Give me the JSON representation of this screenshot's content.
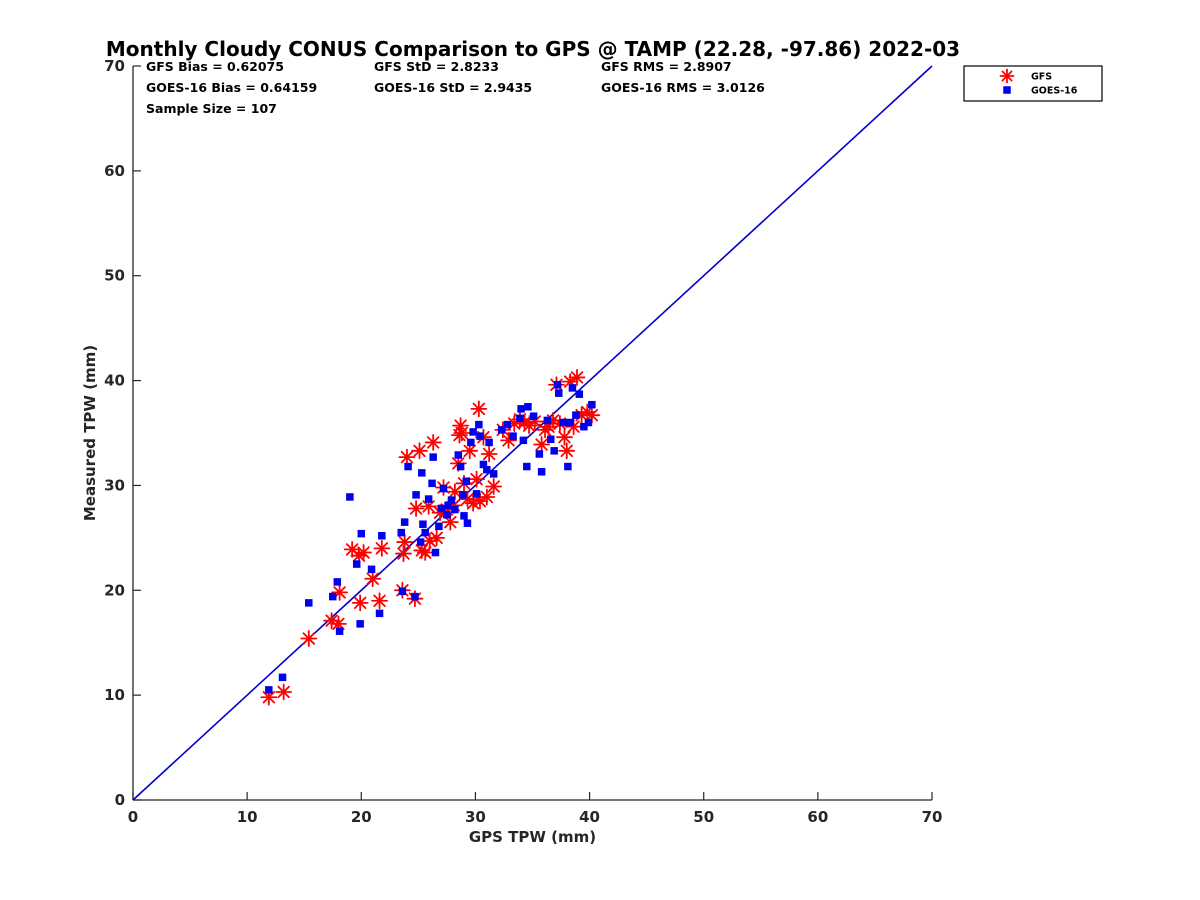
{
  "chart_data": {
    "type": "scatter",
    "title": "Monthly Cloudy CONUS Comparison to GPS @ TAMP (22.28, -97.86) 2022-03",
    "xlabel": "GPS TPW (mm)",
    "ylabel": "Measured TPW (mm)",
    "xlim": [
      0,
      70
    ],
    "ylim": [
      0,
      70
    ],
    "xticks": [
      "0",
      "10",
      "20",
      "30",
      "40",
      "50",
      "60",
      "70"
    ],
    "yticks": [
      "0",
      "10",
      "20",
      "30",
      "40",
      "50",
      "60",
      "70"
    ],
    "grid": false,
    "legend_position": "outside-top-right",
    "stats": {
      "gfs_bias": "GFS Bias = 0.62075",
      "gfs_std": "GFS StD = 2.8233",
      "gfs_rms": "GFS RMS = 2.8907",
      "goes_bias": "GOES-16 Bias = 0.64159",
      "goes_std": "GOES-16 StD = 2.9435",
      "goes_rms": "GOES-16 RMS = 3.0126",
      "sample_size": "Sample Size = 107"
    },
    "reference_line": {
      "x": [
        0,
        70
      ],
      "y": [
        0,
        70
      ],
      "color": "#0000cc"
    },
    "series": [
      {
        "name": "GFS",
        "marker": "asterisk",
        "color": "#ff0000",
        "points": [
          [
            11.9,
            9.8
          ],
          [
            13.2,
            10.3
          ],
          [
            15.4,
            15.4
          ],
          [
            17.4,
            17.1
          ],
          [
            18.0,
            16.8
          ],
          [
            18.1,
            19.8
          ],
          [
            19.2,
            23.9
          ],
          [
            19.8,
            23.3
          ],
          [
            20.2,
            23.6
          ],
          [
            19.9,
            18.8
          ],
          [
            21.0,
            21.1
          ],
          [
            21.6,
            19.0
          ],
          [
            21.8,
            24.0
          ],
          [
            23.6,
            20.0
          ],
          [
            23.7,
            23.5
          ],
          [
            23.8,
            24.6
          ],
          [
            24.0,
            32.7
          ],
          [
            24.7,
            19.2
          ],
          [
            24.8,
            27.8
          ],
          [
            25.1,
            33.3
          ],
          [
            25.3,
            23.8
          ],
          [
            25.6,
            23.6
          ],
          [
            25.9,
            28.0
          ],
          [
            26.0,
            24.7
          ],
          [
            26.3,
            34.1
          ],
          [
            26.6,
            25.0
          ],
          [
            26.9,
            27.4
          ],
          [
            27.2,
            29.8
          ],
          [
            27.5,
            27.7
          ],
          [
            27.8,
            26.5
          ],
          [
            28.1,
            28.1
          ],
          [
            28.2,
            29.4
          ],
          [
            28.5,
            32.1
          ],
          [
            28.6,
            34.8
          ],
          [
            28.7,
            35.7
          ],
          [
            28.8,
            35.0
          ],
          [
            29.0,
            30.2
          ],
          [
            29.3,
            28.7
          ],
          [
            29.5,
            33.3
          ],
          [
            29.8,
            28.3
          ],
          [
            30.1,
            30.6
          ],
          [
            30.3,
            37.3
          ],
          [
            30.4,
            28.5
          ],
          [
            30.7,
            34.6
          ],
          [
            31.0,
            28.9
          ],
          [
            31.2,
            33.0
          ],
          [
            31.6,
            29.9
          ],
          [
            32.4,
            35.3
          ],
          [
            32.9,
            34.3
          ],
          [
            33.4,
            35.9
          ],
          [
            33.9,
            36.3
          ],
          [
            34.3,
            36.0
          ],
          [
            34.7,
            35.7
          ],
          [
            35.2,
            36.1
          ],
          [
            35.8,
            33.9
          ],
          [
            36.1,
            35.3
          ],
          [
            36.4,
            35.6
          ],
          [
            36.8,
            36.2
          ],
          [
            37.1,
            39.6
          ],
          [
            37.4,
            35.9
          ],
          [
            37.8,
            34.6
          ],
          [
            38.0,
            33.3
          ],
          [
            38.3,
            39.9
          ],
          [
            38.6,
            35.6
          ],
          [
            38.9,
            40.3
          ],
          [
            39.3,
            36.7
          ],
          [
            39.8,
            37.0
          ],
          [
            40.2,
            36.7
          ]
        ]
      },
      {
        "name": "GOES-16",
        "marker": "square",
        "color": "#0000ee",
        "points": [
          [
            11.9,
            10.5
          ],
          [
            13.1,
            11.7
          ],
          [
            15.4,
            18.8
          ],
          [
            17.5,
            19.4
          ],
          [
            17.9,
            20.8
          ],
          [
            18.1,
            16.1
          ],
          [
            19.0,
            28.9
          ],
          [
            19.6,
            22.5
          ],
          [
            19.9,
            16.8
          ],
          [
            20.0,
            25.4
          ],
          [
            20.9,
            22.0
          ],
          [
            21.6,
            17.8
          ],
          [
            21.8,
            25.2
          ],
          [
            23.5,
            25.5
          ],
          [
            23.6,
            19.9
          ],
          [
            23.8,
            26.5
          ],
          [
            24.1,
            31.8
          ],
          [
            24.7,
            19.4
          ],
          [
            24.8,
            29.1
          ],
          [
            25.2,
            24.6
          ],
          [
            25.3,
            31.2
          ],
          [
            25.4,
            26.3
          ],
          [
            25.6,
            25.5
          ],
          [
            25.9,
            28.7
          ],
          [
            26.2,
            30.2
          ],
          [
            26.3,
            32.7
          ],
          [
            26.5,
            23.6
          ],
          [
            26.8,
            26.1
          ],
          [
            27.0,
            27.8
          ],
          [
            27.2,
            29.7
          ],
          [
            27.5,
            27.2
          ],
          [
            27.6,
            28.1
          ],
          [
            27.9,
            28.6
          ],
          [
            28.2,
            27.7
          ],
          [
            28.5,
            32.9
          ],
          [
            28.7,
            31.8
          ],
          [
            28.9,
            29.1
          ],
          [
            29.0,
            27.1
          ],
          [
            29.2,
            30.4
          ],
          [
            29.3,
            26.4
          ],
          [
            29.6,
            34.1
          ],
          [
            29.8,
            35.1
          ],
          [
            30.1,
            29.2
          ],
          [
            30.3,
            35.8
          ],
          [
            30.4,
            34.7
          ],
          [
            30.7,
            32.0
          ],
          [
            31.0,
            31.5
          ],
          [
            31.2,
            34.1
          ],
          [
            31.6,
            31.1
          ],
          [
            32.3,
            35.3
          ],
          [
            32.8,
            35.8
          ],
          [
            33.3,
            34.7
          ],
          [
            33.9,
            36.4
          ],
          [
            34.0,
            37.3
          ],
          [
            34.2,
            34.3
          ],
          [
            34.5,
            31.8
          ],
          [
            34.6,
            37.5
          ],
          [
            35.1,
            36.6
          ],
          [
            35.6,
            33.0
          ],
          [
            35.8,
            31.3
          ],
          [
            36.3,
            36.2
          ],
          [
            36.6,
            34.4
          ],
          [
            36.9,
            33.3
          ],
          [
            37.2,
            39.6
          ],
          [
            37.3,
            38.8
          ],
          [
            37.7,
            36.0
          ],
          [
            38.1,
            31.8
          ],
          [
            38.3,
            36.0
          ],
          [
            38.5,
            39.3
          ],
          [
            38.8,
            36.7
          ],
          [
            39.1,
            38.7
          ],
          [
            39.5,
            35.6
          ],
          [
            39.9,
            36.0
          ],
          [
            40.2,
            37.7
          ]
        ]
      }
    ]
  }
}
